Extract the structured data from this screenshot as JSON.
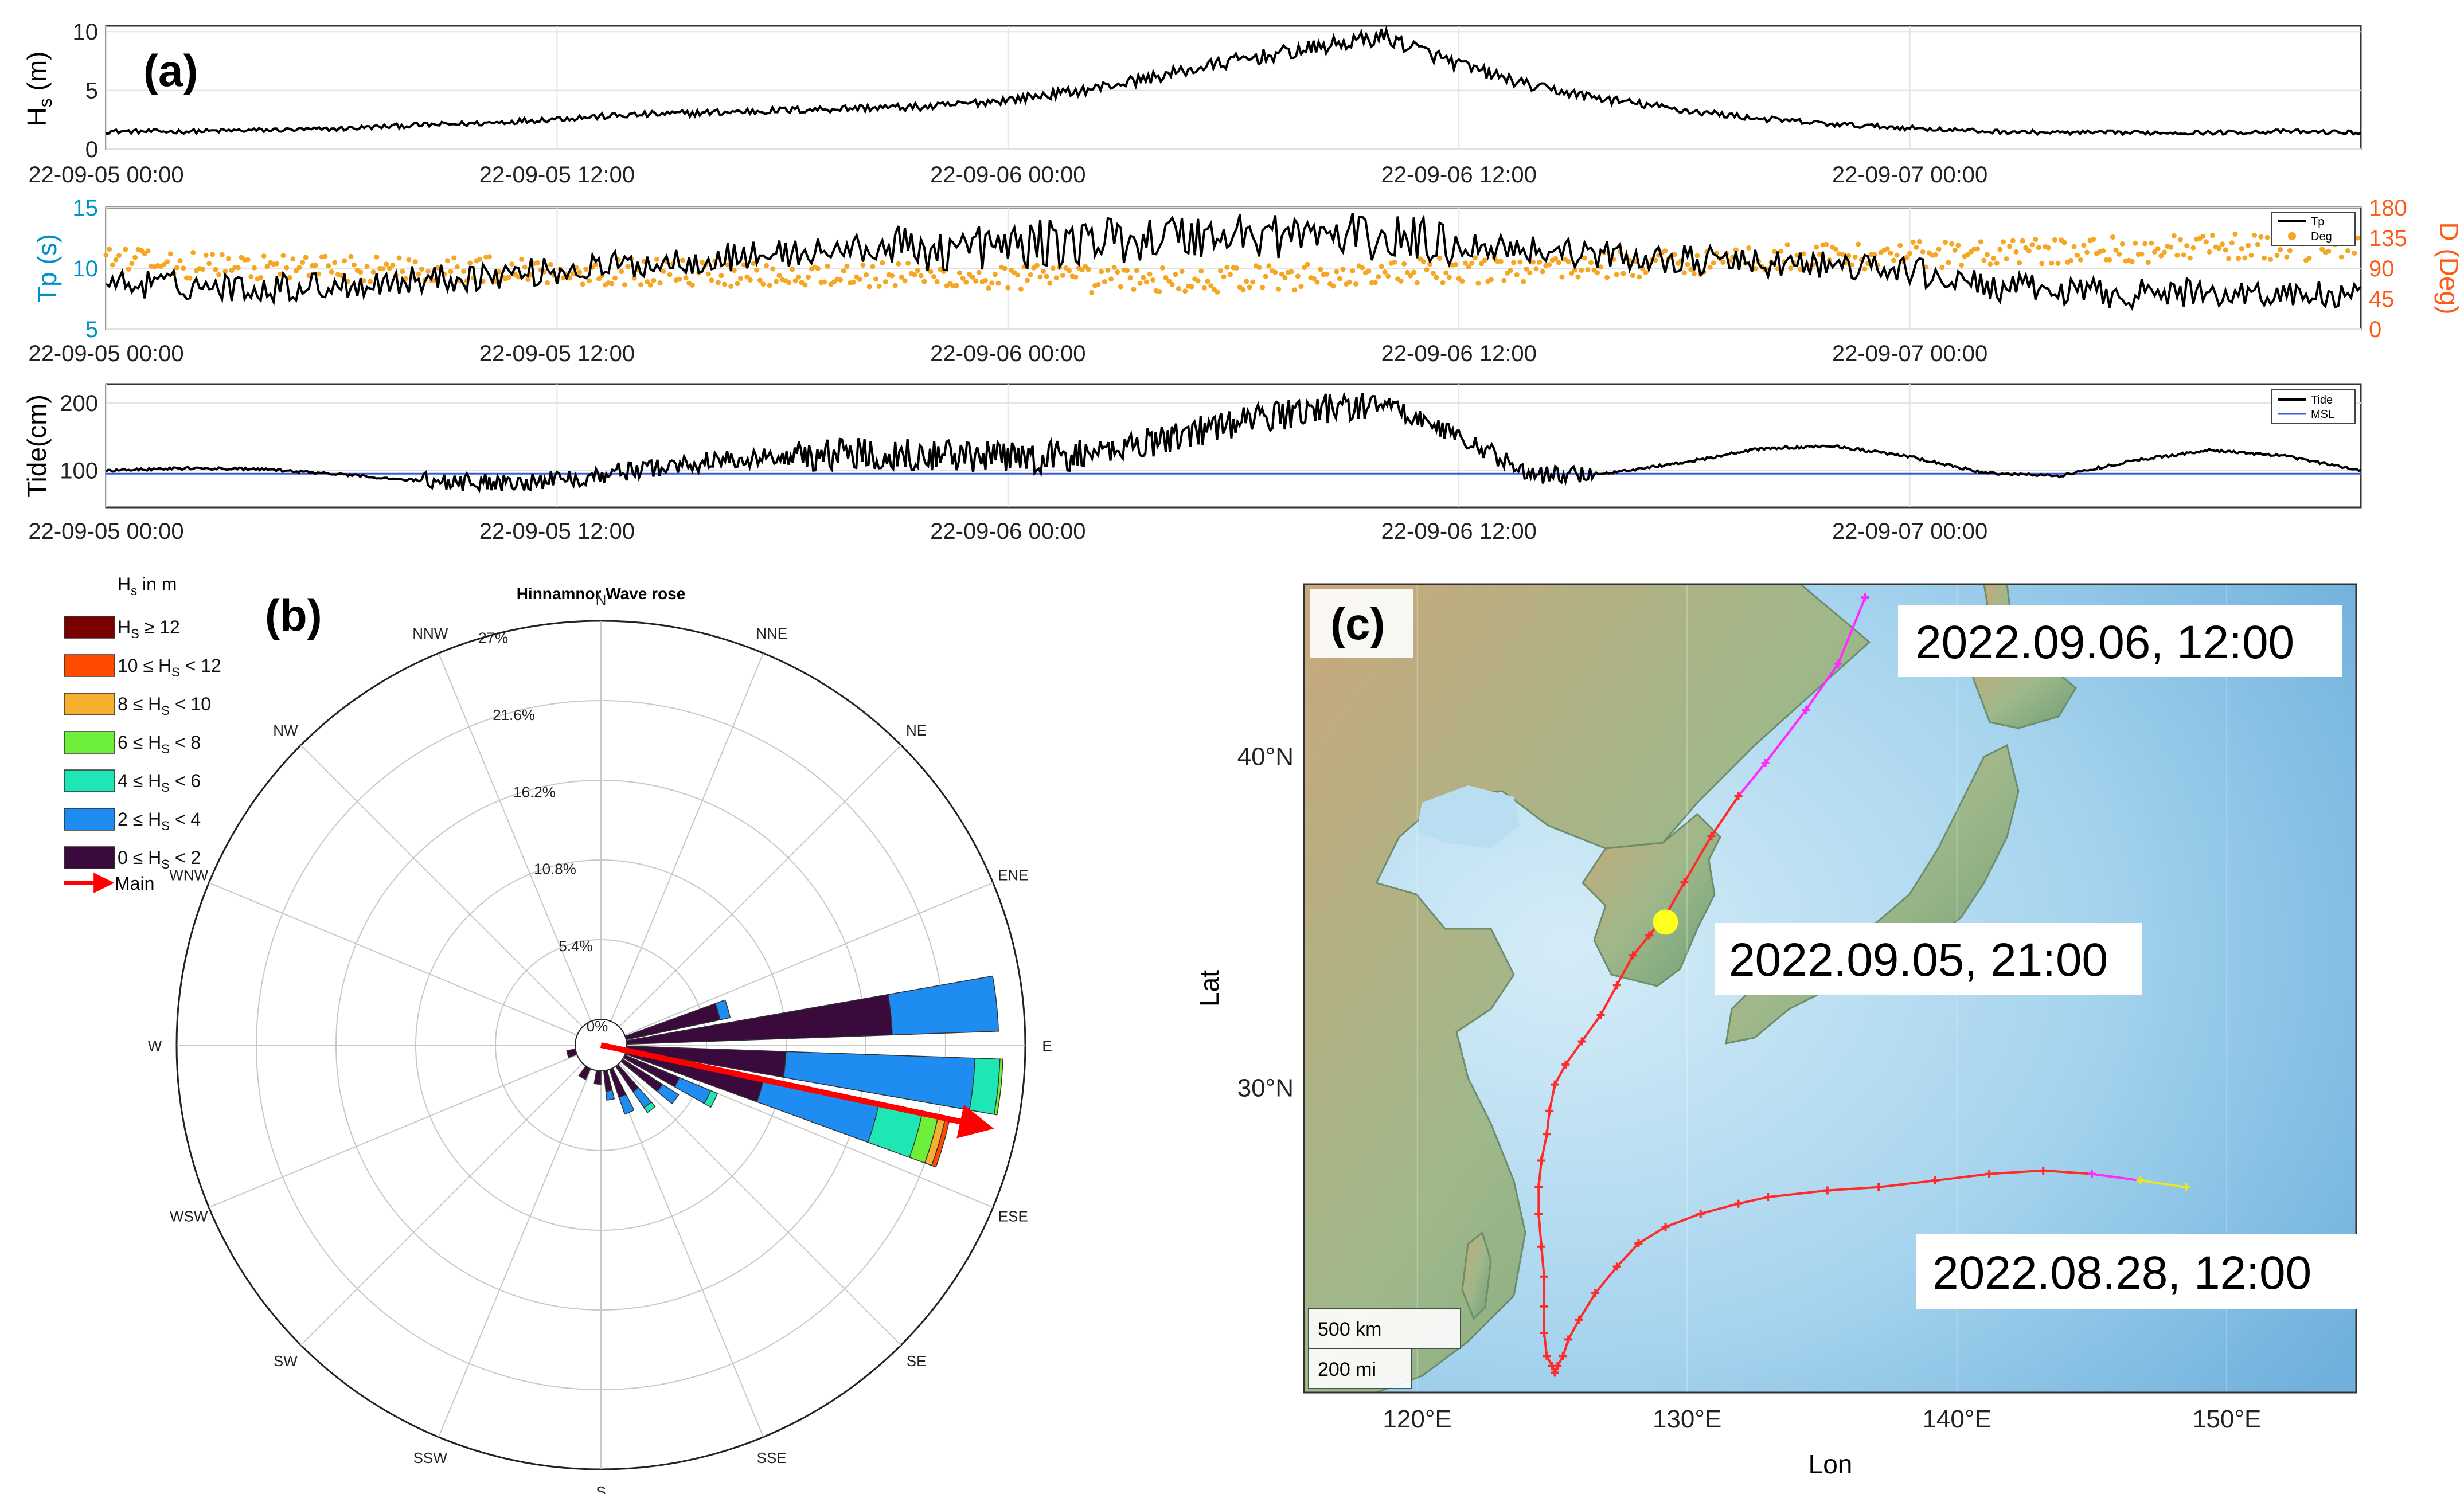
{
  "panel_labels": {
    "a": "(a)",
    "b": "(b)",
    "c": "(c)"
  },
  "time_ticks": [
    "22-09-05 00:00",
    "22-09-05 12:00",
    "22-09-06 00:00",
    "22-09-06 12:00",
    "22-09-07 00:00"
  ],
  "colors": {
    "tp_axis": "#0091c8",
    "deg_axis": "#ff5a14",
    "deg_points": "#f5a623",
    "msl": "#3a5bd9",
    "track_red": "#ff2a2a",
    "track_magenta": "#ff2aff",
    "track_yellow": "#e6e62a",
    "marker": "#ffff1e",
    "main_arrow": "#ff0000"
  },
  "chart_data": [
    {
      "type": "line",
      "panel": "a-1",
      "ylabel": "Hs (m)",
      "ylabel_main": "H",
      "ylabel_sub": "s",
      "ylabel_unit": " (m)",
      "yticks": [
        "0",
        "5",
        "10"
      ],
      "ylim": [
        0,
        10.5
      ],
      "x_range": [
        "22-09-05 00:00",
        "22-09-07 12:00"
      ],
      "series": [
        {
          "values": [
            1.5,
            1.5,
            1.6,
            1.7,
            2.0,
            2.2,
            2.6,
            2.9,
            3.1,
            3.3,
            3.5,
            3.6,
            4.2,
            5.0,
            6.2,
            7.5,
            8.5,
            9.6,
            7.2,
            5.3,
            4.2,
            3.3,
            2.6,
            2.1,
            1.8,
            1.5,
            1.4,
            1.4,
            1.4,
            1.5,
            1.4
          ]
        }
      ]
    },
    {
      "type": "line",
      "panel": "a-2",
      "ylabel": "Tp (s)",
      "ylabel_right": "D (Deg)",
      "yticks": [
        "5",
        "10",
        "15"
      ],
      "ylim": [
        5,
        15
      ],
      "yticks_right": [
        "0",
        "45",
        "90",
        "135",
        "180"
      ],
      "ylim_right": [
        0,
        180
      ],
      "legend": [
        "Tp",
        "Deg"
      ],
      "legend_position": "top-right",
      "series": [
        {
          "name": "Tp",
          "values": [
            8.8,
            8.6,
            8.4,
            8.6,
            9.0,
            9.4,
            9.8,
            10.3,
            10.8,
            11.2,
            11.6,
            11.6,
            11.8,
            12.2,
            12.6,
            12.8,
            12.8,
            12.5,
            12.0,
            11.6,
            11.0,
            10.7,
            10.4,
            10.2,
            9.8,
            8.5,
            8.1,
            7.9,
            8.0,
            7.9,
            7.6
          ]
        },
        {
          "name": "Deg",
          "values": [
            100,
            95,
            92,
            90,
            90,
            88,
            86,
            85,
            83,
            82,
            80,
            78,
            76,
            74,
            72,
            74,
            78,
            82,
            86,
            90,
            95,
            100,
            105,
            108,
            110,
            112,
            115,
            118,
            120,
            122,
            120
          ]
        }
      ]
    },
    {
      "type": "line",
      "panel": "a-3",
      "ylabel": "Tide(cm)",
      "yticks": [
        "100",
        "200"
      ],
      "ylim": [
        45,
        228
      ],
      "legend": [
        "Tide",
        "MSL"
      ],
      "legend_position": "top-right",
      "msl": 95,
      "series": [
        {
          "name": "Tide",
          "values": [
            100,
            103,
            102,
            95,
            86,
            82,
            86,
            100,
            113,
            121,
            126,
            124,
            118,
            122,
            146,
            170,
            190,
            200,
            150,
            92,
            96,
            112,
            132,
            136,
            120,
            96,
            92,
            115,
            130,
            121,
            100
          ]
        },
        {
          "name": "MSL",
          "values": [
            95,
            95
          ]
        }
      ]
    },
    {
      "type": "rose",
      "panel": "b",
      "title": "Hinnamnor Wave rose",
      "legend_title": "Hs in m",
      "legend_title_main": "H",
      "legend_title_sub": "s",
      "legend_title_rest": " in m",
      "radial_ticks": [
        "0%",
        "5.4%",
        "10.8%",
        "16.2%",
        "21.6%",
        "27%"
      ],
      "directions": [
        "N",
        "NNE",
        "NE",
        "ENE",
        "E",
        "ESE",
        "SE",
        "SSE",
        "S",
        "SSW",
        "SW",
        "WSW",
        "W",
        "WNW",
        "NW",
        "NNW"
      ],
      "bins": [
        {
          "pre": "",
          "post": " ≥ 12",
          "color": "#7a0000"
        },
        {
          "pre": "10 ≤ ",
          "post": " < 12",
          "color": "#ff4a00"
        },
        {
          "pre": "8 ≤ ",
          "post": " < 10",
          "color": "#f5b032"
        },
        {
          "pre": "6 ≤ ",
          "post": " < 8",
          "color": "#6ef03a"
        },
        {
          "pre": "4 ≤ ",
          "post": " < 6",
          "color": "#1ee6b4"
        },
        {
          "pre": "2 ≤ ",
          "post": " < 4",
          "color": "#1e8cf0"
        },
        {
          "pre": "0 ≤ ",
          "post": " < 2",
          "color": "#3a0a3c"
        }
      ],
      "main_label": "Main",
      "main_direction_deg": 102,
      "main_magnitude_pct": 25,
      "petals": [
        {
          "dir": 84,
          "width": 8,
          "cum": [
            18.0,
            25.2
          ]
        },
        {
          "dir": 96,
          "width": 8,
          "cum": [
            10.8,
            23.6,
            25.3,
            25.5
          ]
        },
        {
          "dir": 106,
          "width": 8,
          "cum": [
            9.5,
            17.5,
            20.5,
            21.6,
            22.1,
            22.4
          ]
        },
        {
          "dir": 116,
          "width": 7,
          "cum": [
            4.0,
            6.3,
            6.8
          ]
        },
        {
          "dir": 126,
          "width": 7,
          "cum": [
            3.2,
            4.5
          ]
        },
        {
          "dir": 142,
          "width": 7,
          "cum": [
            2.1,
            3.4,
            3.8
          ]
        },
        {
          "dir": 157,
          "width": 8,
          "cum": [
            2.0,
            3.2
          ]
        },
        {
          "dir": 170,
          "width": 8,
          "cum": [
            1.4,
            2.0
          ]
        },
        {
          "dir": 74,
          "width": 8,
          "cum": [
            6.5,
            7.2
          ]
        },
        {
          "dir": 185,
          "width": 10,
          "cum": [
            0.9
          ]
        },
        {
          "dir": 210,
          "width": 12,
          "cum": [
            0.8
          ]
        },
        {
          "dir": 255,
          "width": 12,
          "cum": [
            0.6
          ]
        }
      ]
    },
    {
      "type": "map-track",
      "panel": "c",
      "xlabel": "Lon",
      "ylabel": "Lat",
      "xticks": [
        "120°E",
        "130°E",
        "140°E",
        "150°E"
      ],
      "yticks": [
        "30°N",
        "40°N"
      ],
      "xlim": [
        115.8,
        154.8
      ],
      "ylim": [
        20.8,
        45.2
      ],
      "scale_bars": [
        "500 km",
        "200 mi"
      ],
      "annotations": [
        "2022.09.06, 12:00",
        "2022.09.05, 21:00",
        "2022.08.28, 12:00"
      ],
      "marker": {
        "lon": 129.2,
        "lat": 35.0
      },
      "track": [
        {
          "lon": 148.5,
          "lat": 27.0,
          "c": "y"
        },
        {
          "lon": 146.8,
          "lat": 27.2,
          "c": "y"
        },
        {
          "lon": 145.0,
          "lat": 27.4,
          "c": "m"
        },
        {
          "lon": 143.2,
          "lat": 27.5,
          "c": "r"
        },
        {
          "lon": 141.2,
          "lat": 27.4,
          "c": "r"
        },
        {
          "lon": 139.2,
          "lat": 27.2,
          "c": "r"
        },
        {
          "lon": 137.1,
          "lat": 27.0,
          "c": "r"
        },
        {
          "lon": 135.2,
          "lat": 26.9,
          "c": "r"
        },
        {
          "lon": 133.0,
          "lat": 26.7,
          "c": "r"
        },
        {
          "lon": 131.9,
          "lat": 26.5,
          "c": "r"
        },
        {
          "lon": 130.5,
          "lat": 26.2,
          "c": "r"
        },
        {
          "lon": 129.2,
          "lat": 25.8,
          "c": "r"
        },
        {
          "lon": 128.2,
          "lat": 25.3,
          "c": "r"
        },
        {
          "lon": 127.4,
          "lat": 24.6,
          "c": "r"
        },
        {
          "lon": 126.6,
          "lat": 23.8,
          "c": "r"
        },
        {
          "lon": 126.0,
          "lat": 23.0,
          "c": "r"
        },
        {
          "lon": 125.6,
          "lat": 22.4,
          "c": "r"
        },
        {
          "lon": 125.4,
          "lat": 21.9,
          "c": "r"
        },
        {
          "lon": 125.2,
          "lat": 21.6,
          "c": "r"
        },
        {
          "lon": 125.1,
          "lat": 21.4,
          "c": "r"
        },
        {
          "lon": 125.0,
          "lat": 21.6,
          "c": "r"
        },
        {
          "lon": 124.8,
          "lat": 21.9,
          "c": "r"
        },
        {
          "lon": 124.7,
          "lat": 22.6,
          "c": "r"
        },
        {
          "lon": 124.7,
          "lat": 23.4,
          "c": "r"
        },
        {
          "lon": 124.7,
          "lat": 24.3,
          "c": "r"
        },
        {
          "lon": 124.6,
          "lat": 25.2,
          "c": "r"
        },
        {
          "lon": 124.5,
          "lat": 26.2,
          "c": "r"
        },
        {
          "lon": 124.5,
          "lat": 27.0,
          "c": "r"
        },
        {
          "lon": 124.6,
          "lat": 27.8,
          "c": "r"
        },
        {
          "lon": 124.8,
          "lat": 28.6,
          "c": "r"
        },
        {
          "lon": 124.9,
          "lat": 29.3,
          "c": "r"
        },
        {
          "lon": 125.1,
          "lat": 30.1,
          "c": "r"
        },
        {
          "lon": 125.5,
          "lat": 30.7,
          "c": "r"
        },
        {
          "lon": 126.1,
          "lat": 31.4,
          "c": "r"
        },
        {
          "lon": 126.8,
          "lat": 32.2,
          "c": "r"
        },
        {
          "lon": 127.4,
          "lat": 33.1,
          "c": "r"
        },
        {
          "lon": 128.0,
          "lat": 34.0,
          "c": "r"
        },
        {
          "lon": 128.6,
          "lat": 34.6,
          "c": "r"
        },
        {
          "lon": 129.2,
          "lat": 35.2,
          "c": "r"
        },
        {
          "lon": 129.9,
          "lat": 36.2,
          "c": "r"
        },
        {
          "lon": 130.9,
          "lat": 37.6,
          "c": "r"
        },
        {
          "lon": 131.9,
          "lat": 38.8,
          "c": "r"
        },
        {
          "lon": 132.9,
          "lat": 39.8,
          "c": "m"
        },
        {
          "lon": 134.4,
          "lat": 41.4,
          "c": "m"
        },
        {
          "lon": 135.6,
          "lat": 42.8,
          "c": "m"
        },
        {
          "lon": 136.6,
          "lat": 44.8,
          "c": "m"
        }
      ]
    }
  ]
}
